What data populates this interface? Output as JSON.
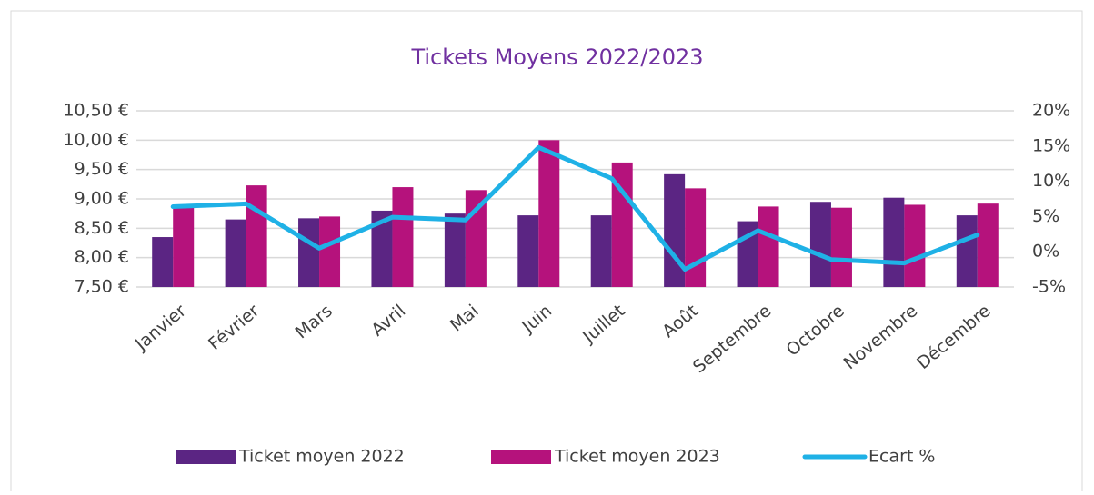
{
  "chart_data": {
    "type": "bar_line",
    "title": "Tickets Moyens 2022/2023",
    "categories": [
      "Janvier",
      "Février",
      "Mars",
      "Avril",
      "Mai",
      "Juin",
      "Juillet",
      "Août",
      "Septembre",
      "Octobre",
      "Novembre",
      "Décembre"
    ],
    "series": [
      {
        "name": "Ticket moyen 2022",
        "color": "#5b2583",
        "type": "bar",
        "values": [
          8.35,
          8.65,
          8.67,
          8.8,
          8.75,
          8.72,
          8.72,
          9.42,
          8.62,
          8.95,
          9.02,
          8.72
        ]
      },
      {
        "name": "Ticket moyen 2023",
        "color": "#b5127c",
        "type": "bar",
        "values": [
          8.85,
          9.23,
          8.7,
          9.2,
          9.15,
          10.0,
          9.62,
          9.18,
          8.87,
          8.85,
          8.9,
          8.92
        ]
      },
      {
        "name": "Ecart %",
        "color": "#1fb1e6",
        "type": "line",
        "axis": "y2",
        "values": [
          6.4,
          6.8,
          0.5,
          4.9,
          4.5,
          14.8,
          10.4,
          -2.5,
          3.0,
          -1.1,
          -1.6,
          2.4
        ]
      }
    ],
    "ylim": [
      7.5,
      10.5
    ],
    "yticks": [
      {
        "value": 7.5,
        "label": "7,50 €"
      },
      {
        "value": 8.0,
        "label": "8,00 €"
      },
      {
        "value": 8.5,
        "label": "8,50 €"
      },
      {
        "value": 9.0,
        "label": "9,00 €"
      },
      {
        "value": 9.5,
        "label": "9,50 €"
      },
      {
        "value": 10.0,
        "label": "10,00 €"
      },
      {
        "value": 10.5,
        "label": "10,50 €"
      }
    ],
    "y2lim": [
      -5,
      20
    ],
    "y2ticks": [
      {
        "value": -5,
        "label": "-5%"
      },
      {
        "value": 0,
        "label": "0%"
      },
      {
        "value": 5,
        "label": "5%"
      },
      {
        "value": 10,
        "label": "10%"
      },
      {
        "value": 15,
        "label": "15%"
      },
      {
        "value": 20,
        "label": "20%"
      }
    ],
    "grid": true,
    "legend": "bottom"
  }
}
